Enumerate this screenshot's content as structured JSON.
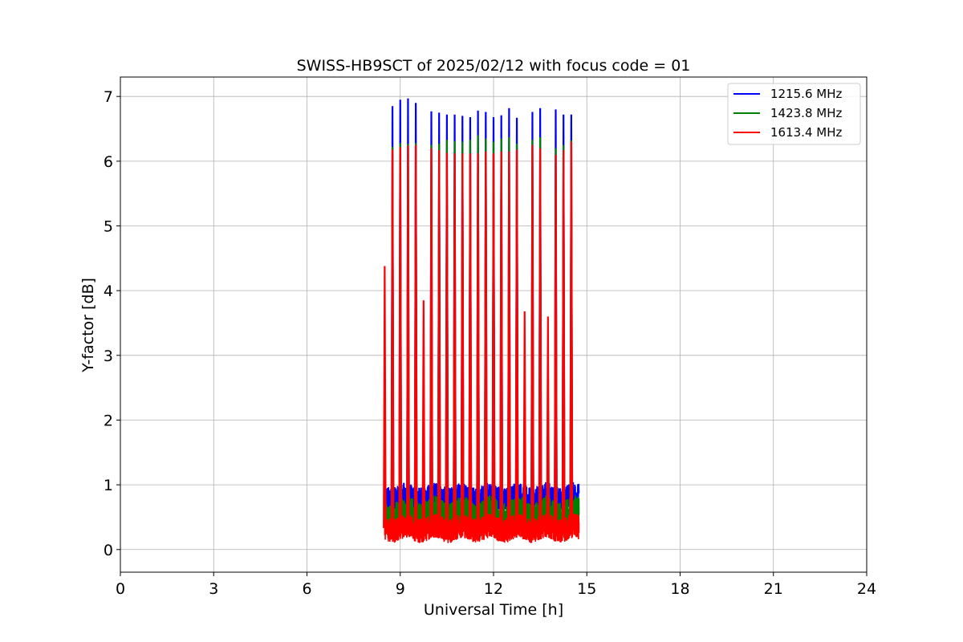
{
  "chart_data": {
    "type": "line",
    "title": "SWISS-HB9SCT of 2025/02/12 with focus code = 01",
    "xlabel": "Universal Time [h]",
    "ylabel": "Y-factor [dB]",
    "xlim": [
      0,
      24
    ],
    "ylim": [
      -0.35,
      7.3
    ],
    "xticks": [
      0,
      3,
      6,
      9,
      12,
      15,
      18,
      21,
      24
    ],
    "xtick_labels": [
      "0",
      "3",
      "6",
      "9",
      "12",
      "15",
      "18",
      "21",
      "24"
    ],
    "yticks": [
      0,
      1,
      2,
      3,
      4,
      5,
      6,
      7
    ],
    "ytick_labels": [
      "0",
      "1",
      "2",
      "3",
      "4",
      "5",
      "6",
      "7"
    ],
    "grid": true,
    "legend_position": "top-right",
    "data_range_hours": [
      8.5,
      14.75
    ],
    "series": [
      {
        "name": "1215.6 MHz",
        "color": "#0000ff",
        "baseline": 0.8,
        "baseline_band": [
          0.62,
          1.2
        ],
        "spikes": [
          [
            8.75,
            6.85
          ],
          [
            9.0,
            6.95
          ],
          [
            9.25,
            6.97
          ],
          [
            9.5,
            6.9
          ],
          [
            10.0,
            6.77
          ],
          [
            10.25,
            6.75
          ],
          [
            10.5,
            6.72
          ],
          [
            10.75,
            6.72
          ],
          [
            11.0,
            6.7
          ],
          [
            11.25,
            6.68
          ],
          [
            11.5,
            6.78
          ],
          [
            11.75,
            6.76
          ],
          [
            12.0,
            6.68
          ],
          [
            12.25,
            6.71
          ],
          [
            12.5,
            6.82
          ],
          [
            12.75,
            6.67
          ],
          [
            13.25,
            6.76
          ],
          [
            13.5,
            6.82
          ],
          [
            14.0,
            6.8
          ],
          [
            14.25,
            6.72
          ],
          [
            14.5,
            6.72
          ]
        ]
      },
      {
        "name": "1423.8 MHz",
        "color": "#008000",
        "baseline": 0.5,
        "baseline_band": [
          0.05,
          0.85
        ],
        "spikes": [
          [
            8.75,
            6.22
          ],
          [
            9.0,
            6.28
          ],
          [
            9.25,
            6.27
          ],
          [
            9.5,
            6.28
          ],
          [
            10.0,
            6.25
          ],
          [
            10.25,
            6.27
          ],
          [
            10.5,
            6.33
          ],
          [
            10.75,
            6.31
          ],
          [
            11.0,
            6.3
          ],
          [
            11.25,
            6.33
          ],
          [
            11.5,
            6.4
          ],
          [
            11.75,
            6.35
          ],
          [
            12.0,
            6.3
          ],
          [
            12.25,
            6.35
          ],
          [
            12.5,
            6.37
          ],
          [
            12.75,
            6.27
          ],
          [
            13.25,
            6.33
          ],
          [
            13.5,
            6.37
          ],
          [
            14.0,
            6.2
          ],
          [
            14.25,
            6.25
          ],
          [
            14.5,
            6.32
          ]
        ]
      },
      {
        "name": "1613.4 MHz",
        "color": "#ff0000",
        "baseline": 0.33,
        "baseline_band": [
          0.0,
          0.55
        ],
        "spikes": [
          [
            8.5,
            4.38
          ],
          [
            8.75,
            6.18
          ],
          [
            9.0,
            6.22
          ],
          [
            9.25,
            6.24
          ],
          [
            9.5,
            6.25
          ],
          [
            9.75,
            3.85
          ],
          [
            10.0,
            6.2
          ],
          [
            10.25,
            6.17
          ],
          [
            10.5,
            6.13
          ],
          [
            10.75,
            6.12
          ],
          [
            11.0,
            6.12
          ],
          [
            11.25,
            6.12
          ],
          [
            11.5,
            6.12
          ],
          [
            11.75,
            6.15
          ],
          [
            12.0,
            6.12
          ],
          [
            12.25,
            6.15
          ],
          [
            12.5,
            6.15
          ],
          [
            12.75,
            6.18
          ],
          [
            13.0,
            3.68
          ],
          [
            13.25,
            6.25
          ],
          [
            13.5,
            6.2
          ],
          [
            13.75,
            3.6
          ],
          [
            14.0,
            6.1
          ],
          [
            14.25,
            6.17
          ],
          [
            14.5,
            6.3
          ]
        ]
      }
    ]
  }
}
